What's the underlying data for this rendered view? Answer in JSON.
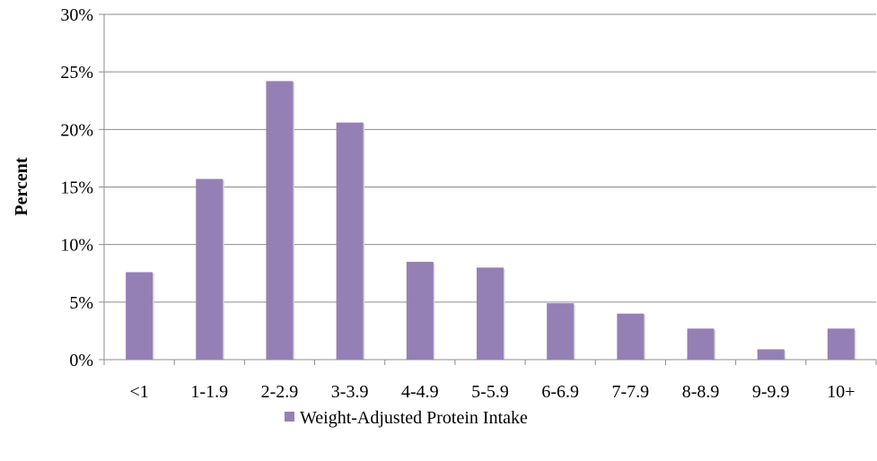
{
  "chart_data": {
    "type": "bar",
    "categories": [
      "<1",
      "1-1.9",
      "2-2.9",
      "3-3.9",
      "4-4.9",
      "5-5.9",
      "6-6.9",
      "7-7.9",
      "8-8.9",
      "9-9.9",
      "10+"
    ],
    "series": [
      {
        "name": "Weight-Adjusted Protein Intake",
        "values": [
          7.6,
          15.7,
          24.2,
          20.6,
          8.5,
          8.0,
          4.9,
          4.0,
          2.7,
          0.9,
          2.7
        ],
        "color": "#9480b5"
      }
    ],
    "yticks": [
      "0%",
      "5%",
      "10%",
      "15%",
      "20%",
      "25%",
      "30%"
    ],
    "ylim": [
      0,
      30
    ],
    "ylabel": "Percent",
    "grid": true,
    "legend_position": "bottom"
  }
}
